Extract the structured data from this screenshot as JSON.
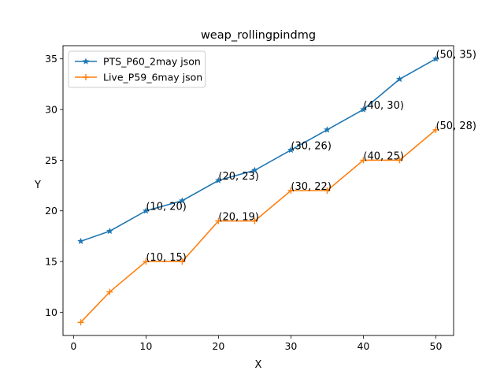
{
  "chart_data": {
    "type": "line",
    "title": "weap_rollingpindmg",
    "xlabel": "X",
    "ylabel": "Y",
    "xlim": [
      -1.45,
      52.45
    ],
    "ylim": [
      7.7,
      36.3
    ],
    "xticks": [
      0,
      10,
      20,
      30,
      40,
      50
    ],
    "yticks": [
      10,
      15,
      20,
      25,
      30,
      35
    ],
    "grid": false,
    "legend_position": "top-left",
    "series": [
      {
        "name": "PTS_P60_2may json",
        "color": "#1f77b4",
        "marker": "star",
        "x": [
          1,
          5,
          10,
          15,
          20,
          25,
          30,
          35,
          40,
          45,
          50
        ],
        "y": [
          17,
          18,
          20,
          21,
          23,
          24,
          26,
          28,
          30,
          33,
          35
        ]
      },
      {
        "name": "Live_P59_6may json",
        "color": "#ff7f0e",
        "marker": "plus",
        "x": [
          1,
          5,
          10,
          15,
          20,
          25,
          30,
          35,
          40,
          45,
          50
        ],
        "y": [
          9,
          12,
          15,
          15,
          19,
          19,
          22,
          22,
          25,
          25,
          28
        ]
      }
    ],
    "annotations": [
      {
        "text": "(10, 20)",
        "x": 10,
        "y": 20
      },
      {
        "text": "(20, 23)",
        "x": 20,
        "y": 23
      },
      {
        "text": "(30, 26)",
        "x": 30,
        "y": 26
      },
      {
        "text": "(40, 30)",
        "x": 40,
        "y": 30
      },
      {
        "text": "(50, 35)",
        "x": 50,
        "y": 35
      },
      {
        "text": "(10, 15)",
        "x": 10,
        "y": 15
      },
      {
        "text": "(20, 19)",
        "x": 20,
        "y": 19
      },
      {
        "text": "(30, 22)",
        "x": 30,
        "y": 22
      },
      {
        "text": "(40, 25)",
        "x": 40,
        "y": 25
      },
      {
        "text": "(50, 28)",
        "x": 50,
        "y": 28
      }
    ]
  }
}
